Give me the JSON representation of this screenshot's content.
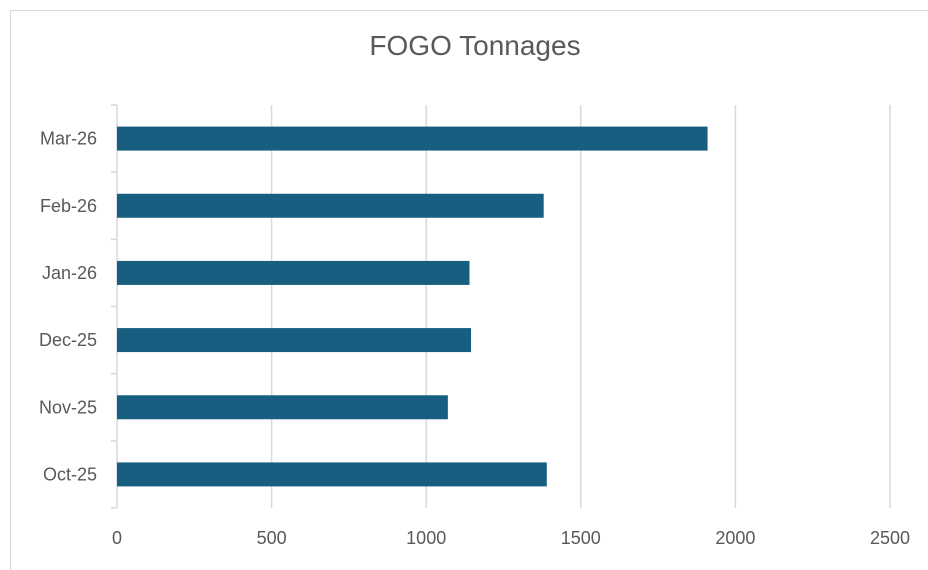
{
  "chart_data": {
    "type": "bar",
    "orientation": "horizontal",
    "title": "FOGO Tonnages",
    "categories": [
      "Oct-25",
      "Nov-25",
      "Dec-25",
      "Jan-26",
      "Feb-26",
      "Mar-26"
    ],
    "values": [
      1390,
      1070,
      1145,
      1140,
      1380,
      1910
    ],
    "xlim": [
      0,
      2500
    ],
    "xticks": [
      0,
      500,
      1000,
      1500,
      2000,
      2500
    ],
    "xlabel": "",
    "ylabel": "",
    "grid": true,
    "legend": false,
    "bar_color": "#175E81",
    "grid_color": "#D9D9D9",
    "text_color": "#595959"
  }
}
